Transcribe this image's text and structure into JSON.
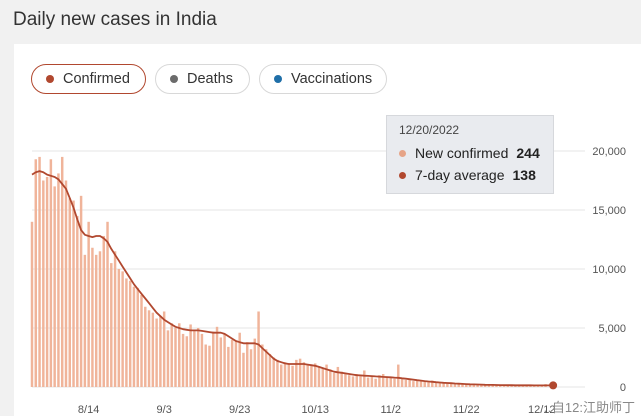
{
  "title": "Daily new cases in India",
  "tabs": [
    {
      "label": "Confirmed",
      "color": "#b1482f",
      "active": true
    },
    {
      "label": "Deaths",
      "color": "#6b6b6b",
      "active": false
    },
    {
      "label": "Vaccinations",
      "color": "#1f6fa8",
      "active": false
    }
  ],
  "tooltip": {
    "date": "12/20/2022",
    "rows": [
      {
        "label": "New confirmed",
        "value": "244",
        "color": "#e6a487"
      },
      {
        "label": "7-day average",
        "value": "138",
        "color": "#b1482f"
      }
    ]
  },
  "watermark": "…自12:江助师丁",
  "chart_data": {
    "type": "bar",
    "title": "Daily new cases in India",
    "xlabel": "",
    "ylabel": "",
    "x_start": "2022-07-30",
    "x_end": "2022-12-20",
    "x_ticks": [
      "8/14",
      "9/3",
      "9/23",
      "10/13",
      "11/2",
      "11/22",
      "12/12"
    ],
    "y_ticks": [
      "20,000",
      "15,000",
      "10,000",
      "5,000",
      "0"
    ],
    "ylim": [
      0,
      20000
    ],
    "grid": true,
    "series": [
      {
        "name": "New confirmed",
        "type": "bar",
        "color": "#f0b49a",
        "values": [
          14000,
          19300,
          19500,
          17500,
          17800,
          19300,
          17000,
          18100,
          19500,
          17500,
          16000,
          15800,
          14500,
          16200,
          11200,
          14000,
          11800,
          11200,
          11500,
          12800,
          14000,
          10500,
          11500,
          10000,
          9800,
          9200,
          9000,
          8500,
          8400,
          7800,
          6800,
          6500,
          6300,
          5800,
          6000,
          6400,
          4800,
          5400,
          5000,
          5400,
          4500,
          4300,
          5300,
          4800,
          5000,
          4500,
          3600,
          3500,
          4700,
          5100,
          4200,
          4500,
          3400,
          4000,
          3900,
          4600,
          2900,
          3800,
          3200,
          4100,
          6400,
          3600,
          3200,
          2800,
          2500,
          2300,
          1900,
          2100,
          2000,
          1800,
          2300,
          2400,
          2100,
          1900,
          1800,
          2000,
          1700,
          1600,
          1900,
          1500,
          1200,
          1700,
          1300,
          1100,
          1000,
          900,
          1100,
          1000,
          1400,
          800,
          900,
          700,
          1000,
          1100,
          900,
          800,
          700,
          1900,
          700,
          600,
          700,
          500,
          600,
          500,
          450,
          400,
          550,
          400,
          350,
          300,
          380,
          300,
          280,
          250,
          300,
          260,
          230,
          210,
          250,
          200,
          220,
          200,
          190,
          180,
          170,
          180,
          170,
          160,
          160,
          150,
          160,
          150,
          140,
          170,
          200,
          210,
          244
        ]
      },
      {
        "name": "7-day average",
        "type": "line",
        "color": "#b1482f",
        "values": [
          18000,
          18200,
          18300,
          18200,
          18000,
          17900,
          17800,
          17600,
          17200,
          16800,
          16000,
          15200,
          14200,
          13300,
          12900,
          12800,
          12700,
          12800,
          12800,
          12600,
          12300,
          11700,
          11200,
          10700,
          10200,
          9700,
          9200,
          8700,
          8300,
          7900,
          7500,
          7100,
          6700,
          6300,
          6000,
          5700,
          5500,
          5300,
          5100,
          5000,
          4900,
          4850,
          4800,
          4800,
          4800,
          4750,
          4700,
          4650,
          4600,
          4600,
          4600,
          4500,
          4300,
          4100,
          3900,
          3800,
          3700,
          3700,
          3700,
          3700,
          3600,
          3300,
          3000,
          2700,
          2400,
          2200,
          2100,
          2000,
          1950,
          1950,
          1950,
          1950,
          1950,
          1900,
          1850,
          1800,
          1700,
          1600,
          1500,
          1400,
          1300,
          1250,
          1200,
          1150,
          1100,
          1050,
          1000,
          980,
          960,
          940,
          920,
          900,
          880,
          860,
          840,
          820,
          800,
          780,
          740,
          700,
          660,
          620,
          580,
          540,
          500,
          470,
          440,
          410,
          380,
          360,
          340,
          320,
          300,
          280,
          260,
          245,
          230,
          220,
          210,
          200,
          190,
          182,
          175,
          168,
          162,
          158,
          154,
          150,
          148,
          146,
          144,
          142,
          140,
          139,
          138,
          138,
          138,
          138,
          138
        ]
      }
    ]
  }
}
